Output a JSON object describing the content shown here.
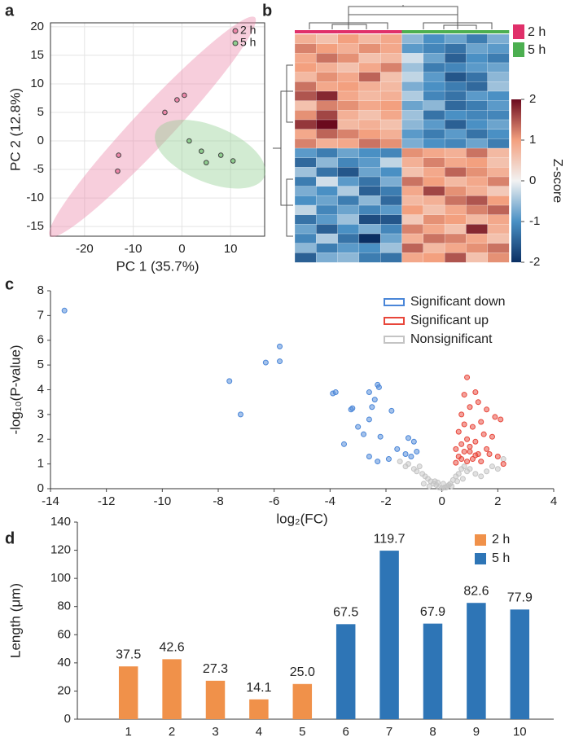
{
  "chart_data": [
    {
      "type": "scatter",
      "panel": "a",
      "xlabel": "PC 1 (35.7%)",
      "ylabel": "PC 2 (12.8%)",
      "xlim": [
        -27,
        17
      ],
      "xticks": [
        -20,
        -10,
        0,
        10
      ],
      "ylim": [
        -16.7,
        20.7
      ],
      "yticks": [
        -15,
        -10,
        -5,
        0,
        5,
        10,
        15,
        20
      ],
      "grid": true,
      "frame": true,
      "ellipses": true,
      "legend": "upper right",
      "series": [
        {
          "name": "2 h",
          "color": "#ec85a8",
          "x": [
            -13,
            -13.2,
            -3.5,
            -1,
            0.5
          ],
          "values": [
            -2.5,
            -5.3,
            5,
            7.2,
            8
          ]
        },
        {
          "name": "5 h",
          "color": "#8fce8f",
          "x": [
            1.5,
            4,
            5,
            8,
            10.5
          ],
          "values": [
            0,
            -1.8,
            -3.8,
            -2.5,
            -3.5
          ]
        }
      ]
    },
    {
      "type": "heatmap",
      "panel": "b",
      "colorbar_label": "Z-score",
      "clim": [
        -2,
        2
      ],
      "cticks": [
        -2,
        -1,
        0,
        1,
        2
      ],
      "colorscale": [
        "#0b2f63",
        "#4a90c4",
        "#f2f2f2",
        "#f3a07f",
        "#6b0a1e"
      ],
      "groups": [
        {
          "name": "2 h",
          "color": "#e0306a"
        },
        {
          "name": "5 h",
          "color": "#4caf50"
        }
      ],
      "column_group": [
        0,
        0,
        0,
        0,
        0,
        1,
        1,
        1,
        1,
        1
      ],
      "rows": [
        [
          0.8,
          0.6,
          1.0,
          0.7,
          0.9,
          -0.6,
          -1.0,
          -0.8,
          -1.2,
          -0.7
        ],
        [
          1.2,
          1.0,
          0.8,
          1.1,
          0.9,
          -0.9,
          -1.1,
          -1.3,
          -0.8,
          -0.9
        ],
        [
          0.9,
          1.3,
          1.1,
          0.6,
          0.7,
          -0.2,
          -0.8,
          -1.5,
          -1.0,
          -1.2
        ],
        [
          1.0,
          0.8,
          0.6,
          0.9,
          1.2,
          -0.5,
          -1.2,
          -1.1,
          -0.9,
          -0.8
        ],
        [
          0.7,
          1.1,
          0.9,
          1.4,
          0.6,
          -0.3,
          -0.9,
          -1.6,
          -1.3,
          -0.6
        ],
        [
          1.3,
          0.9,
          1.0,
          0.8,
          0.7,
          -0.7,
          -1.0,
          -1.2,
          -1.4,
          -0.5
        ],
        [
          1.5,
          1.8,
          0.9,
          0.7,
          0.8,
          -0.4,
          -1.1,
          -1.3,
          -0.9,
          -1.0
        ],
        [
          0.6,
          1.2,
          1.1,
          0.9,
          1.0,
          -0.8,
          -0.6,
          -1.4,
          -1.2,
          -0.9
        ],
        [
          1.1,
          1.6,
          0.8,
          0.6,
          0.9,
          -0.5,
          -1.3,
          -1.0,
          -1.1,
          -1.1
        ],
        [
          1.7,
          2.0,
          0.7,
          0.8,
          0.6,
          -0.6,
          -0.9,
          -1.5,
          -1.0,
          -0.8
        ],
        [
          0.9,
          1.4,
          1.2,
          1.0,
          0.8,
          -0.9,
          -1.2,
          -0.9,
          -1.3,
          -1.0
        ],
        [
          1.2,
          0.8,
          0.9,
          1.3,
          1.1,
          -0.7,
          -1.0,
          -1.1,
          -0.8,
          -1.2
        ],
        [
          -0.9,
          -1.2,
          -0.8,
          -1.0,
          -1.1,
          1.1,
          0.9,
          0.8,
          1.3,
          0.7
        ],
        [
          -1.4,
          -0.6,
          -1.1,
          -0.9,
          -0.3,
          0.8,
          1.2,
          0.9,
          1.0,
          0.6
        ],
        [
          -0.5,
          -1.3,
          -1.6,
          -0.8,
          -1.0,
          0.6,
          0.9,
          1.4,
          1.1,
          0.8
        ],
        [
          -1.2,
          -0.2,
          -0.9,
          -1.3,
          -0.7,
          1.3,
          1.0,
          0.7,
          0.9,
          1.2
        ],
        [
          -0.7,
          -1.0,
          -0.4,
          -1.5,
          -1.2,
          0.9,
          1.6,
          1.1,
          0.8,
          0.5
        ],
        [
          -1.0,
          -0.8,
          -1.2,
          -0.6,
          -1.4,
          0.7,
          0.8,
          1.3,
          1.5,
          1.0
        ],
        [
          -0.3,
          -1.1,
          -0.8,
          -1.1,
          -0.9,
          1.0,
          0.6,
          0.9,
          1.2,
          1.4
        ],
        [
          -1.3,
          -0.9,
          -0.5,
          -1.7,
          -1.6,
          0.5,
          1.1,
          1.0,
          0.7,
          0.9
        ],
        [
          -0.8,
          -1.5,
          -1.0,
          -0.7,
          -1.1,
          1.2,
          0.9,
          0.6,
          1.8,
          0.8
        ],
        [
          -1.1,
          -0.4,
          -1.3,
          -2.0,
          -0.8,
          0.8,
          1.3,
          1.2,
          0.9,
          0.6
        ],
        [
          -0.6,
          -1.2,
          -0.9,
          -1.0,
          -0.5,
          1.4,
          0.7,
          0.9,
          1.1,
          1.3
        ],
        [
          -1.5,
          -0.7,
          -0.6,
          -1.2,
          -1.3,
          0.9,
          1.0,
          1.5,
          0.6,
          1.1
        ]
      ]
    },
    {
      "type": "scatter",
      "panel": "c",
      "xlabel": "log₂(FC)",
      "ylabel": "-log₁₀(P-value)",
      "xlim": [
        -14,
        4
      ],
      "xticks": [
        -14,
        -12,
        -10,
        -8,
        -6,
        -4,
        -2,
        0,
        2,
        4
      ],
      "ylim": [
        0,
        8
      ],
      "yticks": [
        0,
        1,
        2,
        3,
        4,
        5,
        6,
        7,
        8
      ],
      "grid": false,
      "frame": false,
      "ellipses": false,
      "legend": "upper right",
      "series": [
        {
          "name": "Significant down",
          "color": "#4a86d8",
          "x": [
            -13.5,
            -5.8,
            -5.8,
            -6.3,
            -7.6,
            -7.2,
            -3.8,
            -3.9,
            -2.3,
            -2.25,
            -2.6,
            -2.4,
            -2.5,
            -3.2,
            -3.25,
            -1.8,
            -2.6,
            -3,
            -2.8,
            -2.2,
            -1.2,
            -1.0,
            -3.5,
            -1.6,
            -2.6,
            -1.9,
            -1.3,
            -1.1,
            -0.9,
            -2.3
          ],
          "values": [
            7.2,
            5.75,
            5.15,
            5.1,
            4.35,
            3,
            3.9,
            3.85,
            4.2,
            4.1,
            3.9,
            3.6,
            3.3,
            3.25,
            3.2,
            3.15,
            2.8,
            2.5,
            2.2,
            2.1,
            2.05,
            1.9,
            1.8,
            1.6,
            1.3,
            1.2,
            1.4,
            1.3,
            1.5,
            1.1
          ]
        },
        {
          "name": "Significant up",
          "color": "#e8463a",
          "x": [
            0.9,
            1.2,
            0.8,
            1.3,
            1.6,
            1.0,
            0.7,
            1.9,
            2.1,
            1.4,
            0.8,
            1.1,
            0.6,
            1.5,
            1.8,
            0.9,
            1.2,
            0.7,
            1.0,
            1.6,
            0.5,
            0.8,
            1.3,
            1.7,
            2.0,
            0.6,
            1.1,
            0.9,
            1.4,
            0.5,
            2.2,
            1.0,
            1.2,
            0.7
          ],
          "values": [
            4.5,
            3.9,
            3.8,
            3.5,
            3.2,
            3.3,
            3.0,
            2.9,
            2.8,
            2.7,
            2.6,
            2.5,
            2.3,
            2.2,
            2.1,
            2.0,
            1.9,
            1.8,
            1.7,
            1.6,
            1.6,
            1.5,
            1.4,
            1.4,
            1.3,
            1.3,
            1.2,
            1.1,
            1.1,
            1.05,
            1.0,
            1.5,
            1.35,
            1.2
          ]
        },
        {
          "name": "Nonsignificant",
          "color": "#c4c4c4",
          "x": [
            -1.5,
            -1.3,
            -1.2,
            -1.0,
            -0.9,
            -0.8,
            -0.7,
            -0.6,
            -0.5,
            -0.4,
            -0.3,
            -0.2,
            -0.1,
            0,
            0.1,
            0.2,
            0.3,
            0.4,
            0.5,
            0.6,
            0.7,
            0.8,
            0.9,
            1.0,
            1.2,
            1.4,
            1.6,
            1.8,
            2.0,
            2.2,
            -0.45,
            -0.25,
            0.05,
            0.15,
            0.35,
            0.55,
            -0.65,
            0.75,
            -0.15,
            0.25
          ],
          "values": [
            1.1,
            0.9,
            1.0,
            0.8,
            0.7,
            0.9,
            0.6,
            0.5,
            0.4,
            0.3,
            0.2,
            0.15,
            0.05,
            0.02,
            0.05,
            0.1,
            0.2,
            0.35,
            0.5,
            0.6,
            0.8,
            0.9,
            0.7,
            0.8,
            0.6,
            0.5,
            0.7,
            0.9,
            0.8,
            1.2,
            0.1,
            0.3,
            0.2,
            0.05,
            0.1,
            0.3,
            0.2,
            0.4,
            0.25,
            0.15
          ]
        }
      ]
    },
    {
      "type": "bar",
      "panel": "d",
      "ylabel": "Length (μm)",
      "categories": [
        "1",
        "2",
        "3",
        "4",
        "5",
        "6",
        "7",
        "8",
        "9",
        "10"
      ],
      "ylim": [
        0,
        140
      ],
      "yticks": [
        0,
        20,
        40,
        60,
        80,
        100,
        120,
        140
      ],
      "grid": false,
      "legend": "upper right",
      "series": [
        {
          "name": "2 h",
          "color": "#f0914a",
          "values": [
            37.5,
            42.6,
            27.3,
            14.1,
            25.0,
            null,
            null,
            null,
            null,
            null
          ],
          "value_labels": [
            "37.5",
            "42.6",
            "27.3",
            "14.1",
            "25.0",
            null,
            null,
            null,
            null,
            null
          ]
        },
        {
          "name": "5 h",
          "color": "#2e75b6",
          "values": [
            null,
            null,
            null,
            null,
            null,
            67.5,
            119.7,
            67.9,
            82.6,
            77.9
          ],
          "value_labels": [
            null,
            null,
            null,
            null,
            null,
            "67.5",
            "119.7",
            "67.9",
            "82.6",
            "77.9"
          ]
        }
      ]
    }
  ]
}
